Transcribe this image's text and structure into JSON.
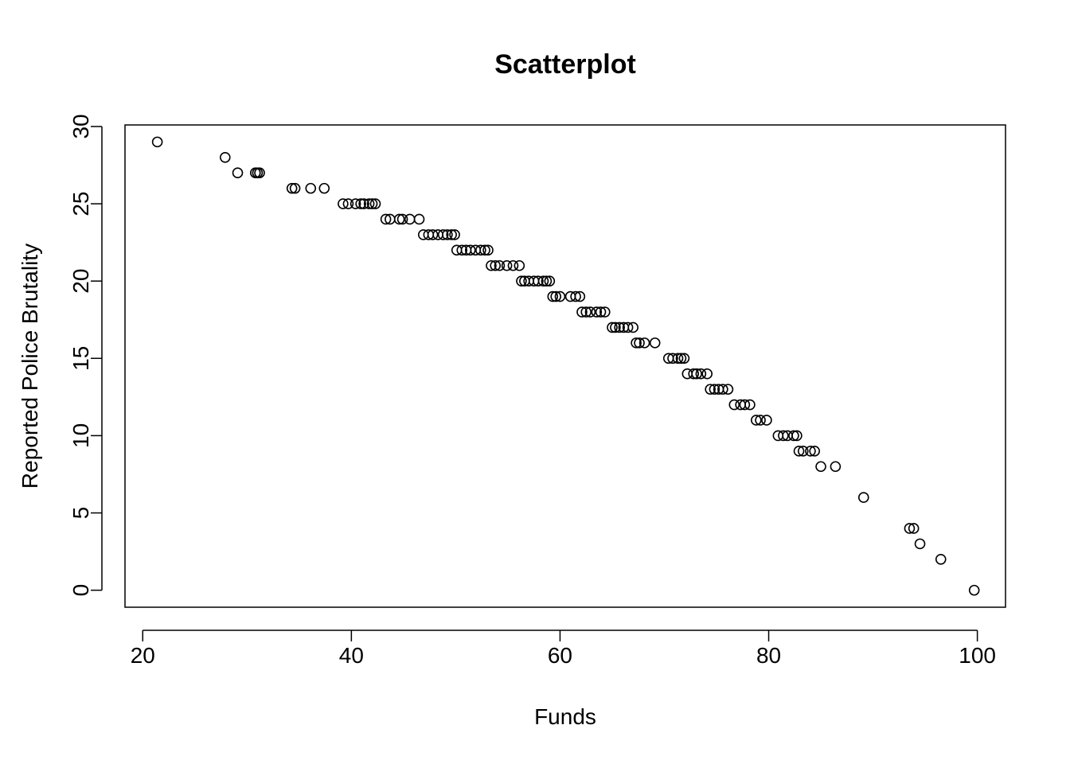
{
  "chart_data": {
    "type": "scatter",
    "title": "Scatterplot",
    "xlabel": "Funds",
    "ylabel": "Reported Police Brutality",
    "xlim": [
      18.3,
      102.7
    ],
    "ylim": [
      -1.1,
      30.1
    ],
    "xticks": [
      20,
      40,
      60,
      80,
      100
    ],
    "yticks": [
      0,
      5,
      10,
      15,
      20,
      25,
      30
    ],
    "grid": false,
    "legend": "none",
    "marker": "open-circle",
    "colors": {
      "marker": "#000000",
      "axis": "#000000",
      "background": "#ffffff"
    },
    "series": [
      {
        "x": [
          21.4,
          27.9,
          29.1,
          30.8,
          31.0,
          31.2,
          34.3,
          34.6,
          36.1,
          37.4,
          39.2,
          39.7,
          40.4,
          40.9,
          41.2,
          41.7,
          42.0,
          42.3,
          43.3,
          43.7,
          44.6,
          44.9,
          45.6,
          46.5,
          46.9,
          47.4,
          47.8,
          48.3,
          48.8,
          49.2,
          49.6,
          49.9,
          50.1,
          50.6,
          51.0,
          51.4,
          51.9,
          52.4,
          52.8,
          53.1,
          53.4,
          53.8,
          54.2,
          54.9,
          55.5,
          56.1,
          56.3,
          56.6,
          57.0,
          57.5,
          57.9,
          58.4,
          58.7,
          59.0,
          59.3,
          59.6,
          60.0,
          61.0,
          61.5,
          61.9,
          62.1,
          62.5,
          62.9,
          63.5,
          63.9,
          64.3,
          65.0,
          65.3,
          65.7,
          66.1,
          66.5,
          67.0,
          67.3,
          67.6,
          68.1,
          69.1,
          70.4,
          70.8,
          71.3,
          71.6,
          71.9,
          72.2,
          72.8,
          73.1,
          73.5,
          74.1,
          74.4,
          74.8,
          75.2,
          75.6,
          76.1,
          76.7,
          77.3,
          77.7,
          78.2,
          78.8,
          79.2,
          79.8,
          80.9,
          81.4,
          81.8,
          82.4,
          82.7,
          82.9,
          83.3,
          84.0,
          84.4,
          85.0,
          86.4,
          89.1,
          93.5,
          93.9,
          94.5,
          96.5,
          99.7
        ],
        "y": [
          29,
          28,
          27,
          27,
          27,
          27,
          26,
          26,
          26,
          26,
          25,
          25,
          25,
          25,
          25,
          25,
          25,
          25,
          24,
          24,
          24,
          24,
          24,
          24,
          23,
          23,
          23,
          23,
          23,
          23,
          23,
          23,
          22,
          22,
          22,
          22,
          22,
          22,
          22,
          22,
          21,
          21,
          21,
          21,
          21,
          21,
          20,
          20,
          20,
          20,
          20,
          20,
          20,
          20,
          19,
          19,
          19,
          19,
          19,
          19,
          18,
          18,
          18,
          18,
          18,
          18,
          17,
          17,
          17,
          17,
          17,
          17,
          16,
          16,
          16,
          16,
          15,
          15,
          15,
          15,
          15,
          14,
          14,
          14,
          14,
          14,
          13,
          13,
          13,
          13,
          13,
          12,
          12,
          12,
          12,
          11,
          11,
          11,
          10,
          10,
          10,
          10,
          10,
          9,
          9,
          9,
          9,
          8,
          8,
          6,
          4,
          4,
          3,
          2,
          0
        ]
      }
    ]
  }
}
